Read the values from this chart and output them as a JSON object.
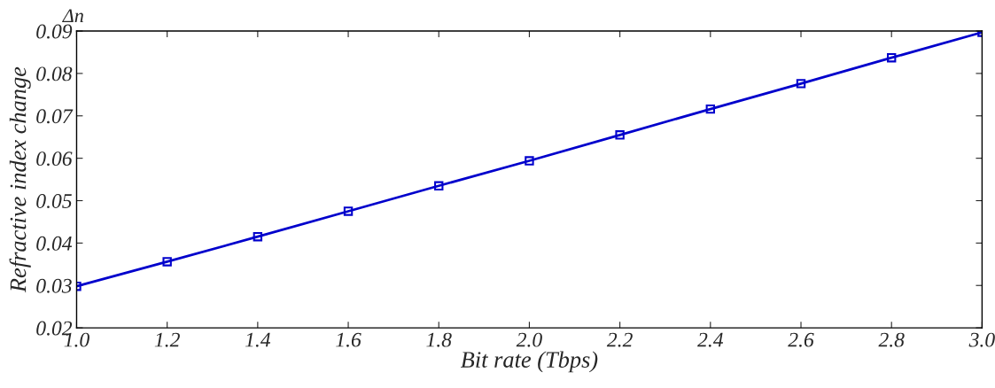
{
  "chart_data": {
    "type": "line",
    "xlabel": "Bit rate (Tbps)",
    "ylabel": "Refractive index change",
    "annotations": [
      "Δn"
    ],
    "x": [
      1.0,
      1.2,
      1.4,
      1.6,
      1.8,
      2.0,
      2.2,
      2.4,
      2.6,
      2.8,
      3.0
    ],
    "series": [
      {
        "color": "#0000cc",
        "values": [
          0.0298,
          0.0356,
          0.0415,
          0.0475,
          0.0535,
          0.0594,
          0.0655,
          0.0716,
          0.0776,
          0.0837,
          0.0897
        ]
      }
    ],
    "xlim": [
      1.0,
      3.0
    ],
    "ylim": [
      0.02,
      0.09
    ],
    "xticks": [
      {
        "value": 1.0,
        "label": "1.0"
      },
      1.2,
      1.4,
      1.6,
      1.8,
      {
        "value": 2.0,
        "label": "2.0"
      },
      2.2,
      2.4,
      2.6,
      2.8,
      {
        "value": 3.0,
        "label": "3.0"
      }
    ],
    "yticks": [
      0.02,
      0.03,
      0.04,
      0.05,
      0.06,
      0.07,
      0.08,
      0.09
    ],
    "grid": false,
    "legend": false,
    "marker": "square",
    "line_style": "solid"
  }
}
